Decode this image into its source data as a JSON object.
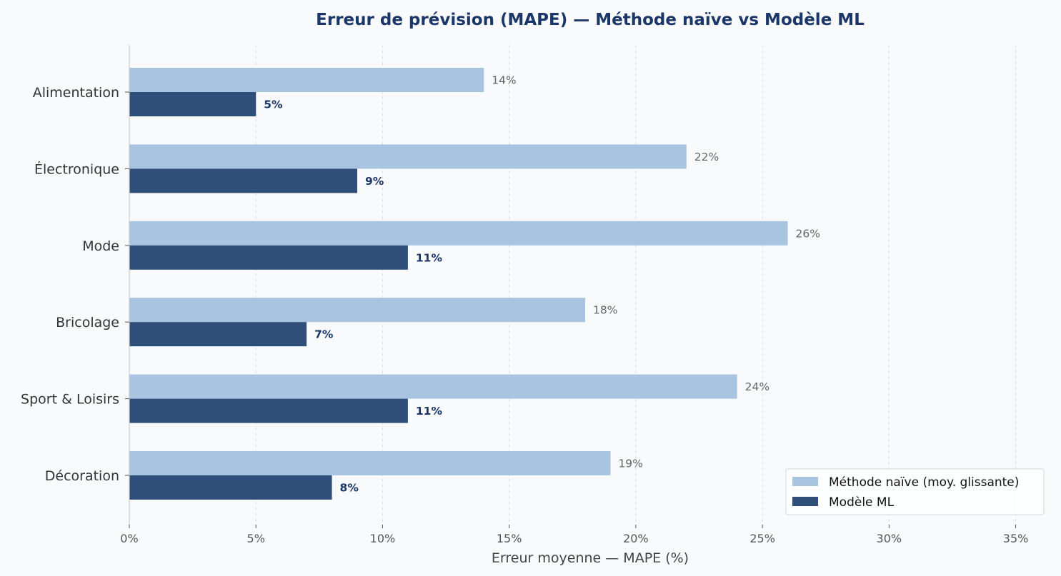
{
  "chart_data": {
    "type": "bar",
    "orientation": "horizontal",
    "title": "Erreur de prévision (MAPE) — Méthode naïve vs Modèle ML",
    "xlabel": "Erreur moyenne — MAPE (%)",
    "ylabel": "",
    "xlim": [
      0,
      36
    ],
    "xticks": [
      0,
      5,
      10,
      15,
      20,
      25,
      30,
      35
    ],
    "xtick_labels": [
      "0%",
      "5%",
      "10%",
      "15%",
      "20%",
      "25%",
      "30%",
      "35%"
    ],
    "grid": "vertical dashed",
    "legend_position": "bottom-right",
    "categories": [
      "Alimentation",
      "Électronique",
      "Mode",
      "Bricolage",
      "Sport & Loisirs",
      "Décoration"
    ],
    "series": [
      {
        "name": "Méthode naïve (moy. glissante)",
        "color": "#a9c4e0",
        "values": [
          14,
          22,
          26,
          18,
          24,
          19
        ],
        "labels": [
          "14%",
          "22%",
          "26%",
          "18%",
          "24%",
          "19%"
        ]
      },
      {
        "name": "Modèle ML",
        "color": "#2f4f7a",
        "values": [
          5,
          9,
          11,
          7,
          11,
          8
        ],
        "labels": [
          "5%",
          "9%",
          "11%",
          "7%",
          "11%",
          "8%"
        ]
      }
    ]
  }
}
